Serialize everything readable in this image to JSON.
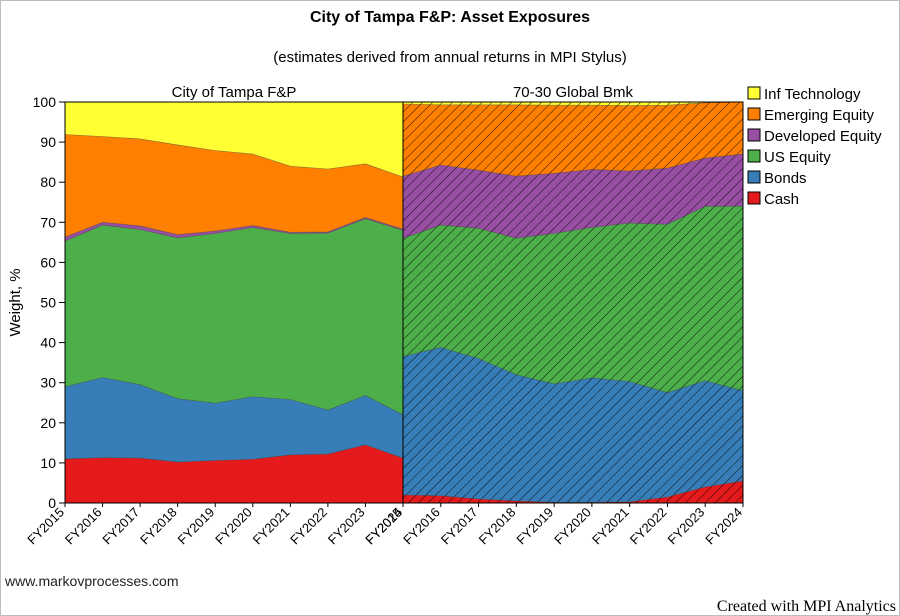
{
  "title": "City of Tampa F&P: Asset Exposures",
  "subtitle": "(estimates derived from annual returns in MPI Stylus)",
  "footer_left": "www.markovprocesses.com",
  "footer_right": "Created with MPI Analytics",
  "chart_data": {
    "type": "area",
    "stacked": true,
    "ylabel": "Weight, %",
    "ylim": [
      0,
      100
    ],
    "yticks": [
      0,
      10,
      20,
      30,
      40,
      50,
      60,
      70,
      80,
      90,
      100
    ],
    "legend_position": "top-right",
    "panels": [
      {
        "name": "City of Tampa F&P",
        "pattern": "solid",
        "x": [
          "FY2015",
          "FY2016",
          "FY2017",
          "FY2018",
          "FY2019",
          "FY2020",
          "FY2021",
          "FY2022",
          "FY2023",
          "FY2024"
        ],
        "series": [
          {
            "name": "Cash",
            "values": [
              11,
              11.3,
              11.2,
              10.2,
              10.6,
              10.9,
              12,
              12.2,
              14.5,
              11.2
            ]
          },
          {
            "name": "Bonds",
            "values": [
              18,
              20,
              18.3,
              15.8,
              14.3,
              15.6,
              13.8,
              11,
              12.3,
              10.8
            ]
          },
          {
            "name": "US Equity",
            "values": [
              36.3,
              38,
              38.7,
              40.1,
              42.3,
              42.2,
              41.4,
              44.1,
              44.1,
              46
            ]
          },
          {
            "name": "Developed Equity",
            "values": [
              1,
              0.7,
              0.9,
              0.8,
              0.6,
              0.5,
              0.3,
              0.3,
              0.3,
              0.3
            ]
          },
          {
            "name": "Emerging Equity",
            "values": [
              25.6,
              21.4,
              21.7,
              22.4,
              20.1,
              17.8,
              16.5,
              15.7,
              13.4,
              13
            ]
          },
          {
            "name": "Inf Technology",
            "values": [
              8.1,
              8.6,
              9.2,
              10.7,
              12.1,
              13,
              16,
              16.7,
              15.4,
              18.7
            ]
          }
        ]
      },
      {
        "name": "70-30 Global Bmk",
        "pattern": "hatched",
        "x": [
          "FY2015",
          "FY2016",
          "FY2017",
          "FY2018",
          "FY2019",
          "FY2020",
          "FY2021",
          "FY2022",
          "FY2023",
          "FY2024"
        ],
        "series": [
          {
            "name": "Cash",
            "values": [
              2,
              1.8,
              1,
              0.5,
              0.2,
              0.2,
              0.3,
              1.5,
              4,
              5.5
            ]
          },
          {
            "name": "Bonds",
            "values": [
              34.5,
              37,
              35,
              31.5,
              29.5,
              31,
              30,
              26,
              26.5,
              22.5
            ]
          },
          {
            "name": "US Equity",
            "values": [
              29.5,
              30.5,
              32.5,
              34,
              37.5,
              37.5,
              39.5,
              42,
              43.5,
              46
            ]
          },
          {
            "name": "Developed Equity",
            "values": [
              15.5,
              15,
              14.5,
              15.5,
              15,
              14.5,
              13,
              14,
              12,
              13
            ]
          },
          {
            "name": "Emerging Equity",
            "values": [
              18,
              15,
              16.3,
              17.8,
              17,
              16,
              16.3,
              15.7,
              13.8,
              13
            ]
          },
          {
            "name": "Inf Technology",
            "values": [
              0.5,
              0.7,
              0.7,
              0.7,
              0.8,
              0.8,
              0.9,
              0.8,
              0.2,
              0
            ]
          }
        ]
      }
    ],
    "colors": {
      "Cash": "#e41a1c",
      "Bonds": "#377eb8",
      "US Equity": "#4daf4a",
      "Developed Equity": "#984ea3",
      "Emerging Equity": "#ff7f00",
      "Inf Technology": "#ffff33"
    },
    "legend_order": [
      "Inf Technology",
      "Emerging Equity",
      "Developed Equity",
      "US Equity",
      "Bonds",
      "Cash"
    ]
  }
}
